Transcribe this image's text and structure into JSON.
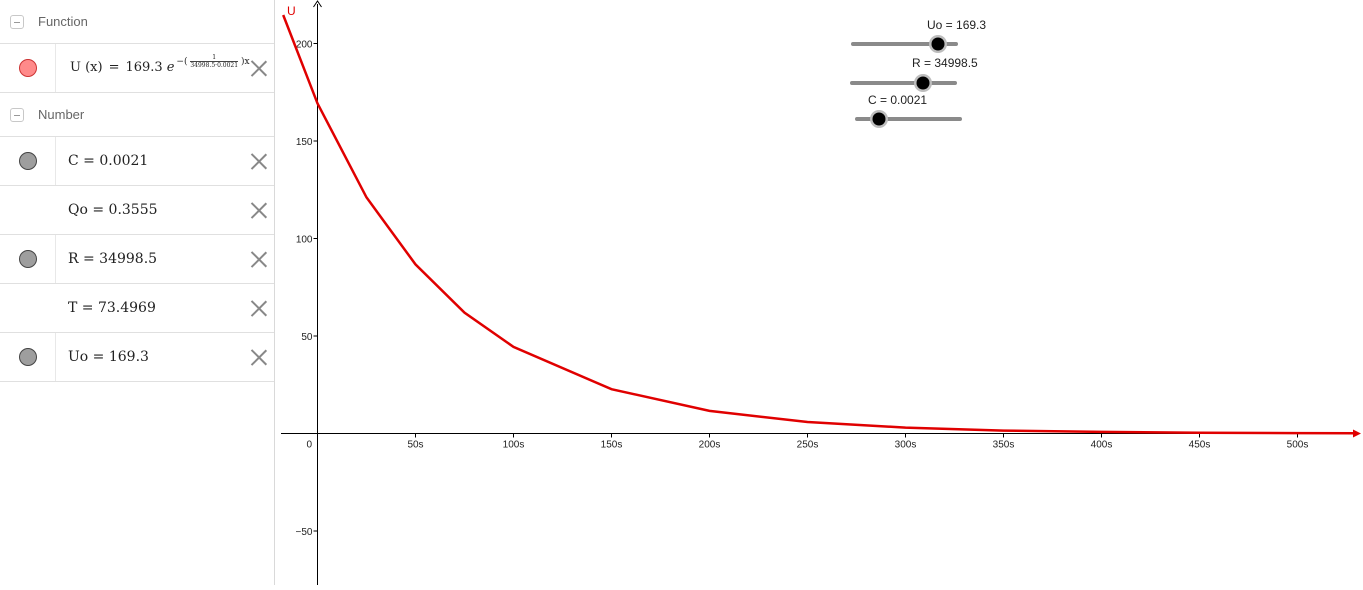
{
  "algebra": {
    "groups": [
      {
        "title": "Function"
      },
      {
        "title": "Number"
      }
    ],
    "function": {
      "name": "U (x)",
      "eq": "=",
      "coef": "169.3",
      "base": "e",
      "exp_prefix": "−(",
      "exp_num": "1",
      "exp_den": "34998.5·0.0021",
      "exp_suffix": ")x",
      "color": "#ff8a8a"
    },
    "numbers": [
      {
        "text": "C = 0.0021",
        "marble": "gray"
      },
      {
        "text": "Qo = 0.3555",
        "marble": "none"
      },
      {
        "text": "R = 34998.5",
        "marble": "gray"
      },
      {
        "text": "T = 73.4969",
        "marble": "none"
      },
      {
        "text": "Uo = 169.3",
        "marble": "gray"
      }
    ]
  },
  "graph": {
    "y_axis_name": "U",
    "x_ticks": [
      "0",
      "50s",
      "100s",
      "150s",
      "200s",
      "250s",
      "300s",
      "350s",
      "400s",
      "450s",
      "500s"
    ],
    "y_ticks": [
      "200",
      "150",
      "100",
      "50",
      "−50"
    ],
    "curve_color": "#e00000",
    "sliders": [
      {
        "label": "Uo = 169.3",
        "value": 169.3
      },
      {
        "label": "R = 34998.5",
        "value": 34998.5
      },
      {
        "label": "C = 0.0021",
        "value": 0.0021
      }
    ]
  },
  "chart_data": {
    "type": "line",
    "title": "",
    "xlabel": "",
    "ylabel": "U",
    "xlim": [
      -18,
      535
    ],
    "ylim": [
      -75,
      220
    ],
    "x_tick_values": [
      50,
      100,
      150,
      200,
      250,
      300,
      350,
      400,
      450,
      500
    ],
    "y_tick_values": [
      200,
      150,
      100,
      50,
      -50
    ],
    "series": [
      {
        "x": [
          -17.5,
          0,
          25,
          50,
          75,
          100,
          150,
          200,
          250,
          300,
          350,
          400,
          450,
          500,
          530
        ],
        "values": [
          214.6,
          169.3,
          121.1,
          86.7,
          62.0,
          44.4,
          22.7,
          11.6,
          5.9,
          3.0,
          1.5,
          0.8,
          0.4,
          0.2,
          0.1
        ]
      }
    ],
    "grid": false
  }
}
